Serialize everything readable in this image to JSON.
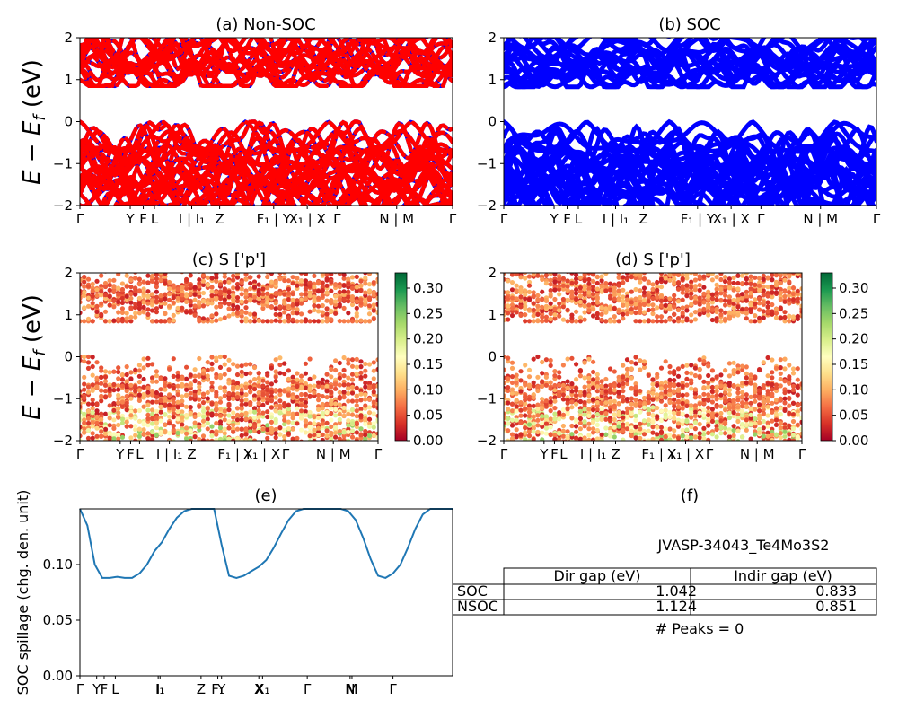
{
  "figure": {
    "ylabel_top": "E − E",
    "ylabel_sub": "f",
    "ylabel_unit": " (eV)"
  },
  "colors": {
    "nonsoc_band_primary": "#ff0000",
    "nonsoc_band_secondary": "#0000ff",
    "soc_band": "#0000ff",
    "spillage_line": "#1f77b4",
    "colormap": [
      "#a50026",
      "#d73027",
      "#f46d43",
      "#fdae61",
      "#fee08b",
      "#ffffbf",
      "#d9ef8b",
      "#a6d96a",
      "#66bd63",
      "#1a9850",
      "#006837"
    ]
  },
  "chart_data": [
    {
      "id": "a",
      "type": "line",
      "title": "(a) Non-SOC",
      "ylim": [
        -2,
        2
      ],
      "yticks": [
        "2",
        "1",
        "0",
        "−1",
        "−2"
      ],
      "xticks": [
        "Γ",
        "Y",
        "F",
        "L",
        "I | I₁",
        "Z",
        "F₁ | Y",
        "X₁ | X",
        "Γ",
        "N | M",
        "Γ"
      ],
      "bands": {
        "valence_top_ev": 0.0,
        "conduction_bottom_ev": 0.85
      }
    },
    {
      "id": "b",
      "type": "line",
      "title": "(b) SOC",
      "ylim": [
        -2,
        2
      ],
      "yticks": [
        "2",
        "1",
        "0",
        "−1",
        "−2"
      ],
      "xticks": [
        "Γ",
        "Y",
        "F",
        "L",
        "I | I₁",
        "Z",
        "F₁ | Y",
        "X₁ | X",
        "Γ",
        "N | M",
        "Γ"
      ],
      "bands": {
        "valence_top_ev": 0.0,
        "conduction_bottom_ev": 0.83
      }
    },
    {
      "id": "c",
      "type": "scatter",
      "title": "(c)  S ['p']",
      "ylim": [
        -2,
        2
      ],
      "yticks": [
        "2",
        "1",
        "0",
        "−1",
        "−2"
      ],
      "xticks": [
        "Γ",
        "Y",
        "F",
        "L",
        "I | I₁",
        "Z",
        "F₁ | Y",
        "X₁ | X",
        "Γ",
        "N | M",
        "Γ"
      ],
      "colorbar_ticks": [
        "0.30",
        "0.25",
        "0.20",
        "0.15",
        "0.10",
        "0.05",
        "0.00"
      ],
      "colorbar_range": [
        0,
        0.33
      ]
    },
    {
      "id": "d",
      "type": "scatter",
      "title": "(d) S ['p']",
      "ylim": [
        -2,
        2
      ],
      "yticks": [
        "2",
        "1",
        "0",
        "−1",
        "−2"
      ],
      "xticks": [
        "Γ",
        "Y",
        "F",
        "L",
        "I | I₁",
        "Z",
        "F₁ | Y",
        "X₁ | X",
        "Γ",
        "N | M",
        "Γ"
      ],
      "colorbar_ticks": [
        "0.30",
        "0.25",
        "0.20",
        "0.15",
        "0.10",
        "0.05",
        "0.00"
      ],
      "colorbar_range": [
        0,
        0.33
      ]
    },
    {
      "id": "e",
      "type": "line",
      "title": "(e)",
      "ylabel": "SOC spillage (chg. den. unit)",
      "ylim": [
        0,
        0.15
      ],
      "yticks": [
        "0.10",
        "0.05",
        "0.00"
      ],
      "xticks": [
        "Γ",
        "Y",
        "F",
        "L",
        "I",
        "I₁",
        "Z",
        "F₁",
        "Y",
        "X",
        "X₁",
        "Γ",
        "N",
        "M",
        "Γ"
      ],
      "x": [
        0,
        2,
        4,
        6,
        8,
        10,
        12,
        14,
        16,
        18,
        20,
        22,
        24,
        26,
        28,
        30,
        32,
        34,
        36,
        38,
        40,
        42,
        44,
        46,
        48,
        50,
        52,
        54,
        56,
        58,
        60,
        62,
        64,
        66,
        68,
        70,
        72,
        74,
        76,
        78,
        80,
        82,
        84,
        86,
        88,
        90,
        92,
        94,
        96,
        98,
        100
      ],
      "values": [
        0.15,
        0.135,
        0.1,
        0.088,
        0.088,
        0.089,
        0.088,
        0.088,
        0.092,
        0.1,
        0.112,
        0.12,
        0.132,
        0.142,
        0.148,
        0.15,
        0.15,
        0.15,
        0.15,
        0.118,
        0.09,
        0.088,
        0.09,
        0.094,
        0.098,
        0.104,
        0.115,
        0.128,
        0.14,
        0.148,
        0.15,
        0.15,
        0.15,
        0.15,
        0.15,
        0.15,
        0.148,
        0.14,
        0.124,
        0.105,
        0.09,
        0.088,
        0.092,
        0.1,
        0.115,
        0.132,
        0.145,
        0.15,
        0.15,
        0.15,
        0.15
      ]
    },
    {
      "id": "f",
      "type": "table",
      "title": "(f)",
      "subtitle": "JVASP-34043_Te4Mo3S2",
      "columns": [
        "Dir gap (eV)",
        "Indir gap (eV)"
      ],
      "rows": [
        {
          "label": "SOC",
          "cells": [
            "1.042",
            "0.833"
          ]
        },
        {
          "label": "NSOC",
          "cells": [
            "1.124",
            "0.851"
          ]
        }
      ],
      "footnote": "# Peaks = 0"
    }
  ]
}
